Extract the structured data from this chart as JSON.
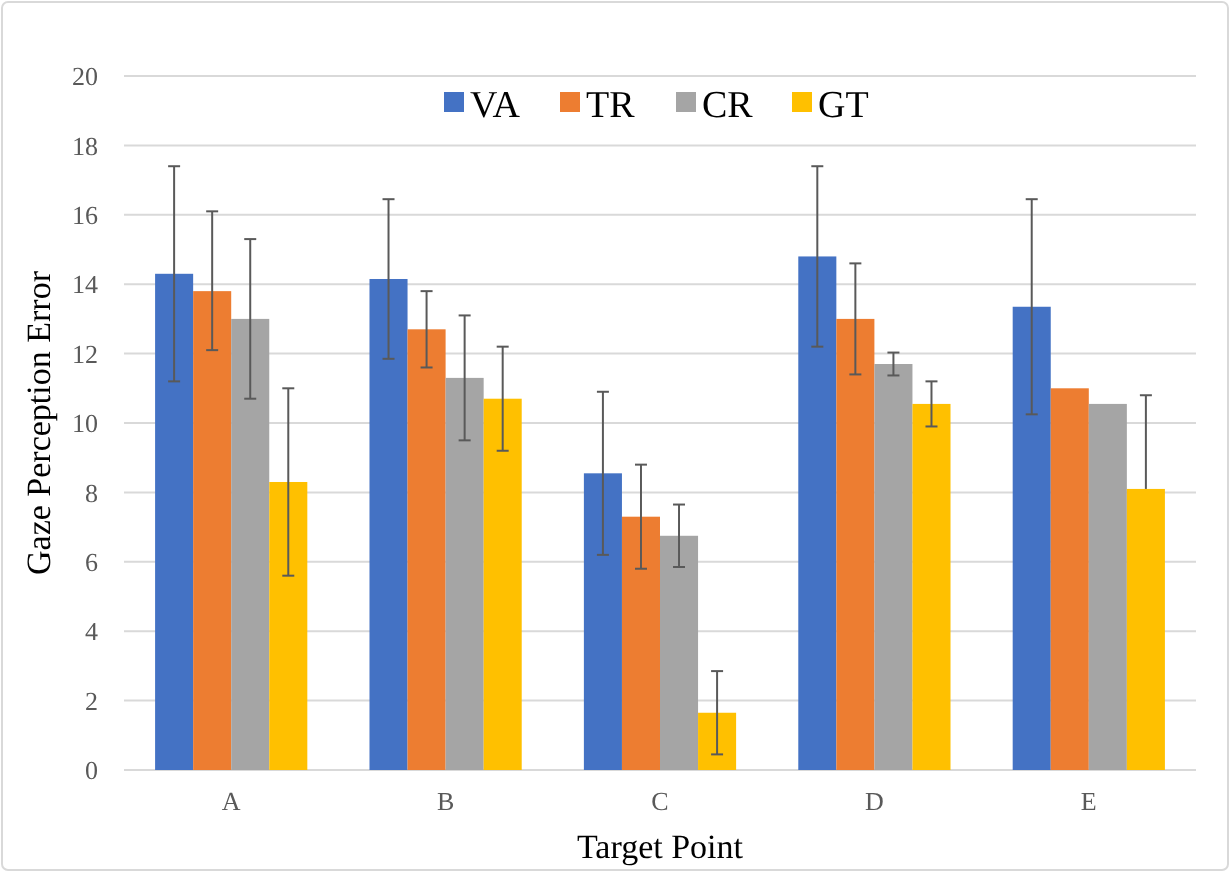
{
  "chart_data": {
    "type": "bar",
    "xlabel": "Target Point",
    "ylabel": "Gaze Perception Error",
    "categories": [
      "A",
      "B",
      "C",
      "D",
      "E"
    ],
    "series": [
      {
        "name": "VA",
        "color": "#4472c4",
        "values": [
          14.3,
          14.15,
          8.55,
          14.8,
          13.35
        ],
        "errors": [
          3.1,
          2.3,
          2.35,
          2.6,
          3.1
        ]
      },
      {
        "name": "TR",
        "color": "#ed7d31",
        "values": [
          13.8,
          12.7,
          7.3,
          13.0,
          11.0
        ],
        "errors": [
          [
            12.1,
            16.1
          ],
          1.1,
          1.5,
          1.6,
          null
        ]
      },
      {
        "name": "CR",
        "color": "#a5a5a5",
        "values": [
          13.0,
          11.3,
          6.75,
          11.7,
          10.55
        ],
        "errors": [
          2.3,
          1.8,
          0.9,
          0.33,
          null
        ]
      },
      {
        "name": "GT",
        "color": "#ffc000",
        "values": [
          8.3,
          10.7,
          1.65,
          10.55,
          8.1
        ],
        "errors": [
          2.7,
          1.5,
          1.2,
          0.65,
          [
            8.1,
            10.8
          ]
        ]
      }
    ],
    "ylim": [
      0,
      20
    ],
    "yticks": [
      0,
      2,
      4,
      6,
      8,
      10,
      12,
      14,
      16,
      18,
      20
    ],
    "grid": "y",
    "legend": "top"
  }
}
